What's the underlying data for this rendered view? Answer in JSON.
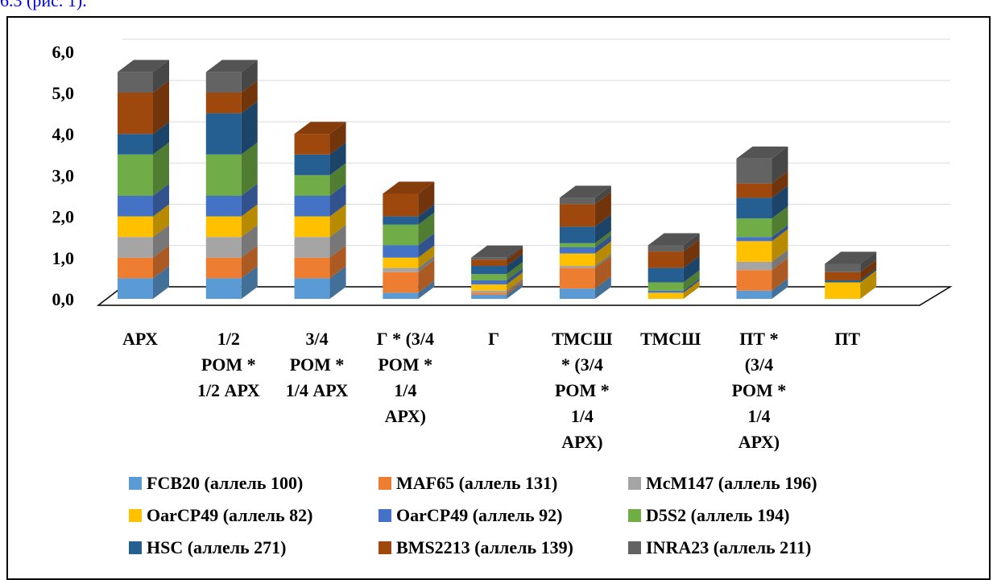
{
  "header_fragment": "6.3 (рис. 1).",
  "chart_data": {
    "type": "bar",
    "stacked": true,
    "three_d": true,
    "ylim": [
      0,
      6
    ],
    "yticks": [
      "0,0",
      "1,0",
      "2,0",
      "3,0",
      "4,0",
      "5,0",
      "6,0"
    ],
    "grid": true,
    "legend_position": "bottom",
    "categories": [
      [
        "АРХ"
      ],
      [
        "1/2",
        "РОМ *",
        "1/2 АРХ"
      ],
      [
        "3/4",
        "РОМ *",
        "1/4 АРХ"
      ],
      [
        "Г * (3/4",
        "РОМ *",
        "1/4",
        "АРХ)"
      ],
      [
        "Г"
      ],
      [
        "ТМСШ",
        "* (3/4",
        "РОМ *",
        "1/4",
        "АРХ)"
      ],
      [
        "ТМСШ"
      ],
      [
        "ПТ *",
        "(3/4",
        "РОМ *",
        "1/4",
        "АРХ)"
      ],
      [
        "ПТ"
      ]
    ],
    "series": [
      {
        "name": "FCB20 (аллель 100)",
        "color": "#5b9bd5",
        "values": [
          0.5,
          0.5,
          0.5,
          0.15,
          0.1,
          0.25,
          0.0,
          0.2,
          0.0
        ]
      },
      {
        "name": "MAF65 (аллель 131)",
        "color": "#ed7d31",
        "values": [
          0.5,
          0.5,
          0.5,
          0.5,
          0.05,
          0.5,
          0.0,
          0.5,
          0.0
        ]
      },
      {
        "name": "McM147 (аллель 196)",
        "color": "#a5a5a5",
        "values": [
          0.5,
          0.5,
          0.5,
          0.1,
          0.05,
          0.05,
          0.0,
          0.2,
          0.0
        ]
      },
      {
        "name": "OarCP49 (аллель 82)",
        "color": "#ffc000",
        "values": [
          0.5,
          0.5,
          0.5,
          0.25,
          0.15,
          0.3,
          0.15,
          0.5,
          0.4
        ]
      },
      {
        "name": "OarCP49 (аллель 92)",
        "color": "#4472c4",
        "values": [
          0.5,
          0.5,
          0.5,
          0.3,
          0.1,
          0.15,
          0.05,
          0.1,
          0.0
        ]
      },
      {
        "name": "D5S2 (аллель 194)",
        "color": "#70ad47",
        "values": [
          1.0,
          1.0,
          0.5,
          0.5,
          0.15,
          0.1,
          0.2,
          0.45,
          0.0
        ]
      },
      {
        "name": "HSC (аллель 271)",
        "color": "#255e91",
        "values": [
          0.5,
          1.0,
          0.5,
          0.2,
          0.2,
          0.4,
          0.35,
          0.5,
          0.05
        ]
      },
      {
        "name": "BMS2213 (аллель 139)",
        "color": "#9e480e",
        "values": [
          1.0,
          0.5,
          0.5,
          0.55,
          0.15,
          0.55,
          0.4,
          0.35,
          0.2
        ]
      },
      {
        "name": "INRA23 (аллель 211)",
        "color": "#636363",
        "values": [
          0.5,
          0.5,
          0.0,
          0.0,
          0.05,
          0.15,
          0.15,
          0.6,
          0.2
        ]
      }
    ]
  }
}
